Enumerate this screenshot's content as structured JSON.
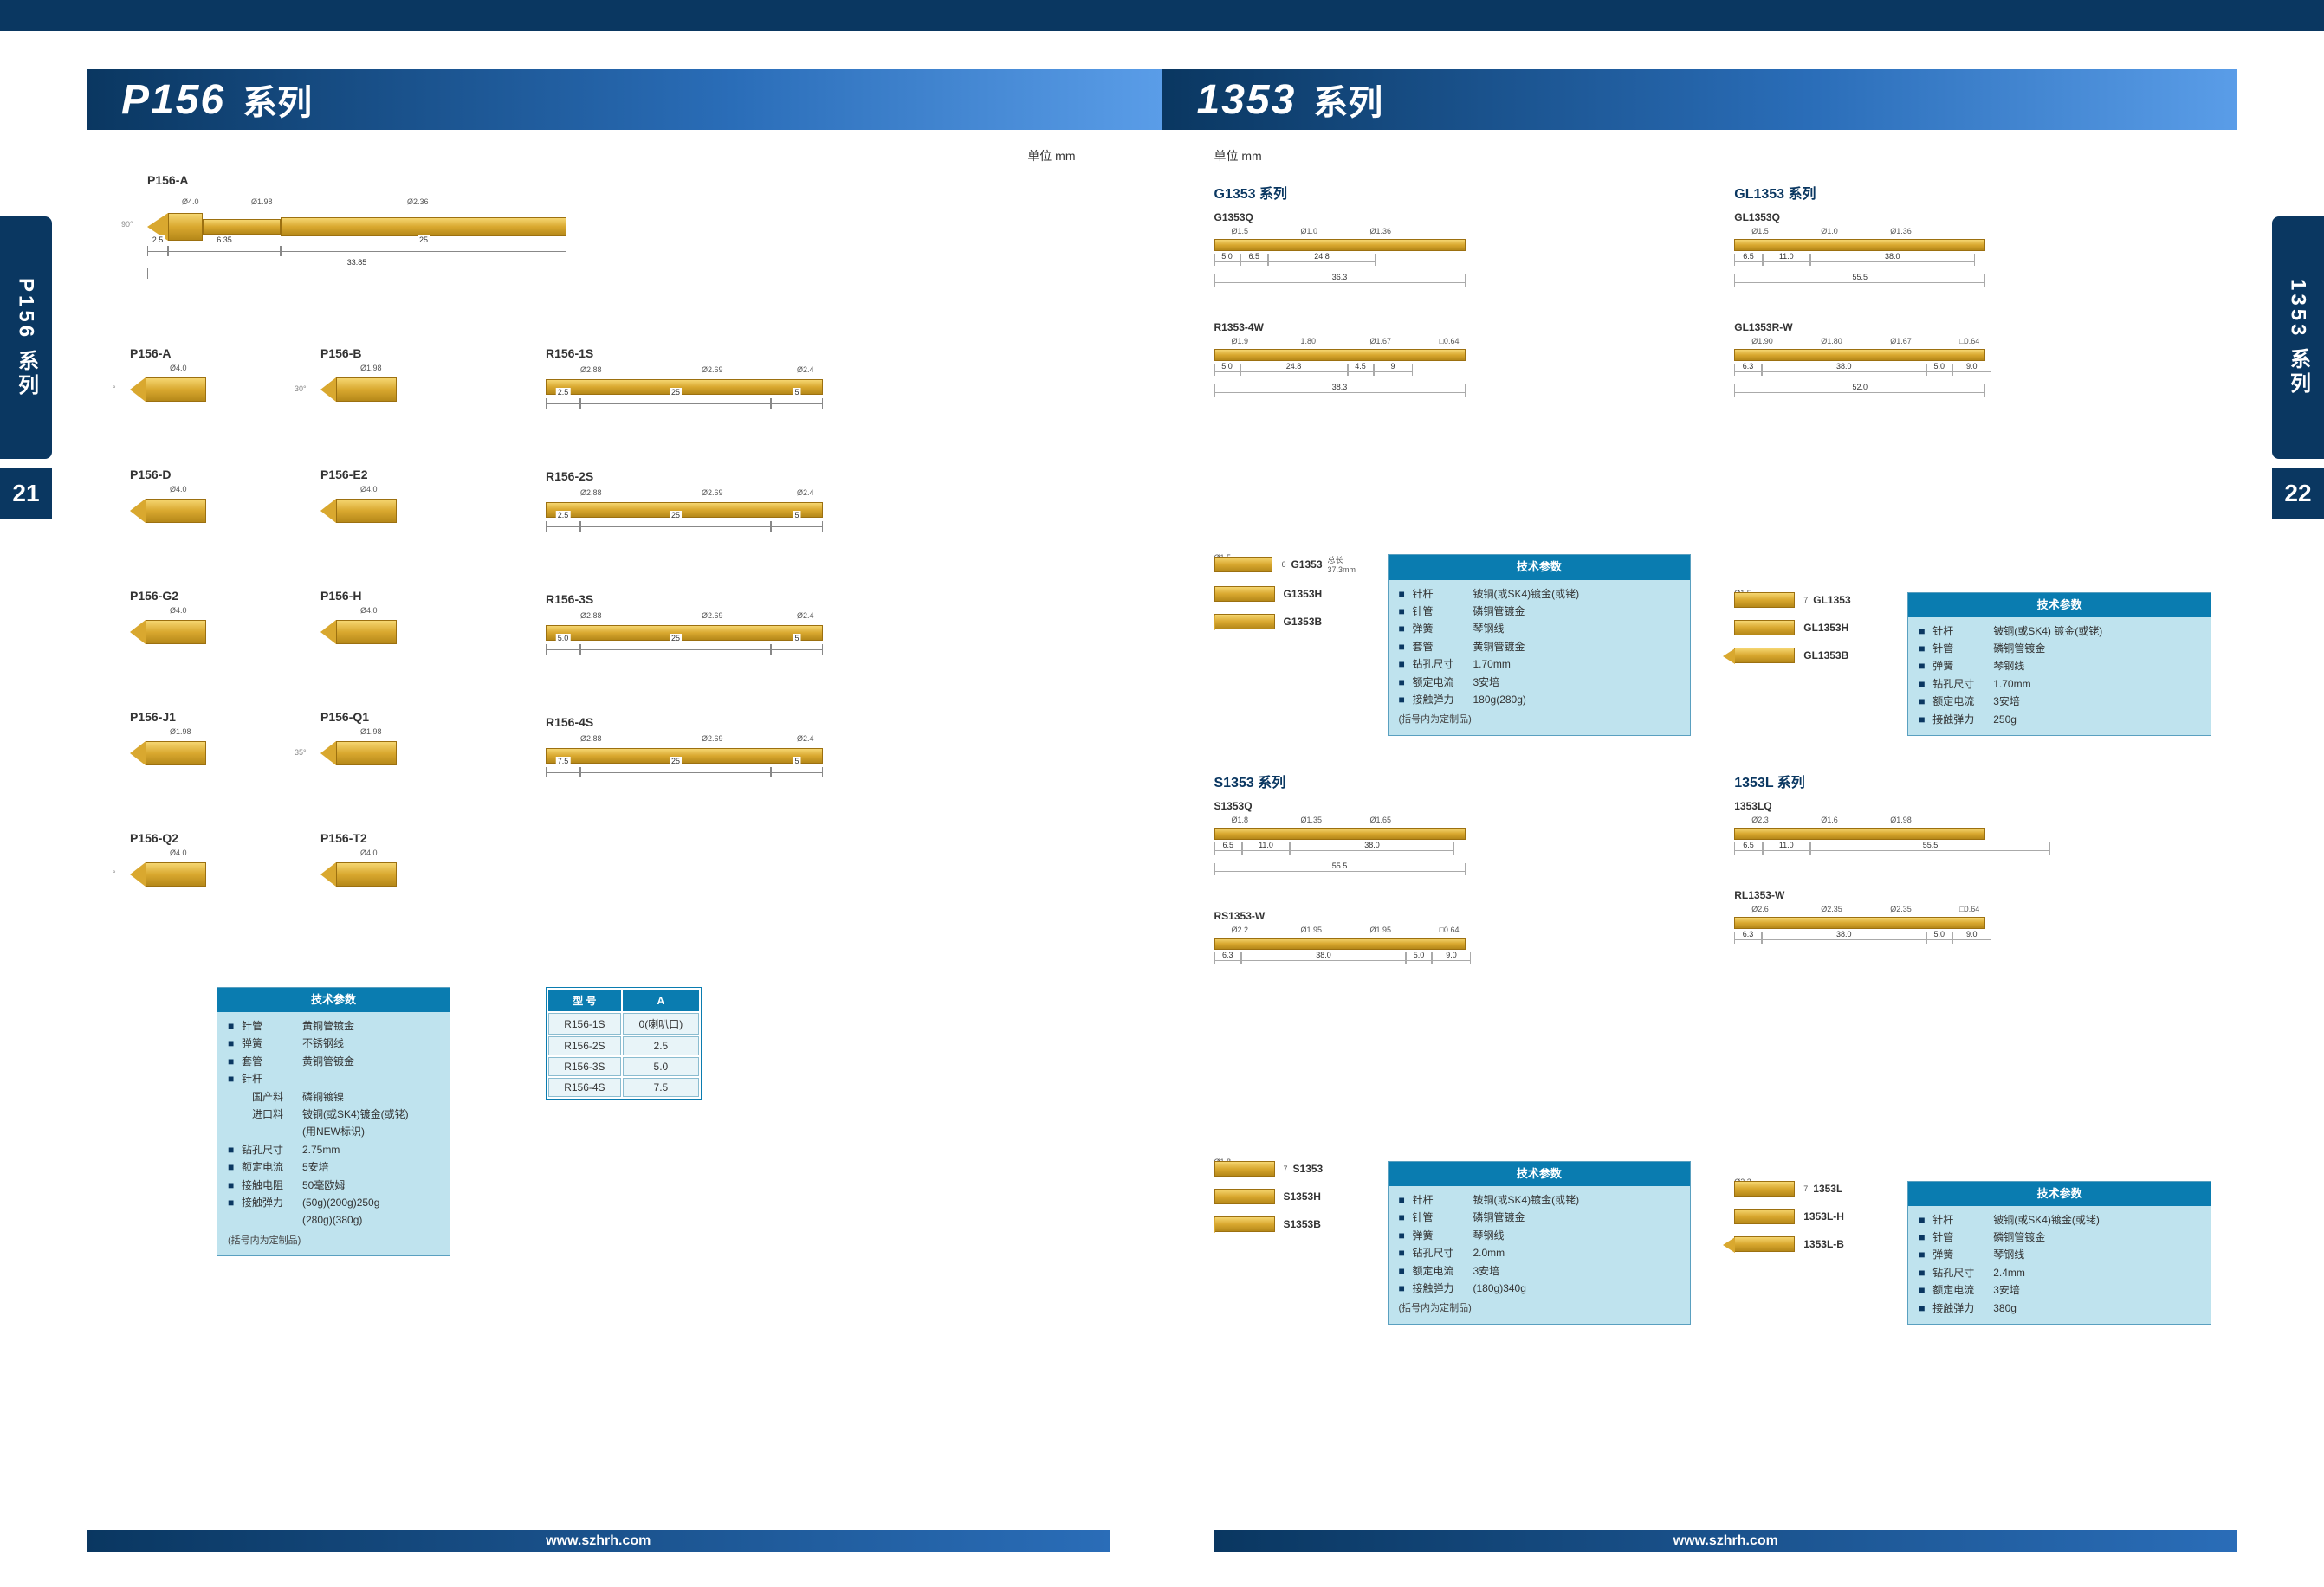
{
  "unit_label_left": "单位  mm",
  "unit_label_right": "单位  mm",
  "footer_url": "www.szhrh.com",
  "left": {
    "series_code": "P156",
    "series_suffix": "系列",
    "sidetab": "P156 系列",
    "pagenum": "21",
    "main_pin": {
      "name": "P156-A",
      "dia_top": [
        "Ø4.0",
        "Ø1.98",
        "Ø2.36"
      ],
      "angle": "90°",
      "segs_top": [
        "2.5",
        "6.35",
        "25"
      ],
      "total": "33.85"
    },
    "tips": [
      {
        "name": "P156-A",
        "dia": "Ø4.0",
        "angle": "90°"
      },
      {
        "name": "P156-B",
        "dia": "Ø1.98",
        "angle": "30°"
      },
      {
        "name": "P156-D",
        "dia": "Ø4.0"
      },
      {
        "name": "P156-E2",
        "dia": "Ø4.0"
      },
      {
        "name": "P156-G2",
        "dia": "Ø4.0"
      },
      {
        "name": "P156-H",
        "dia": "Ø4.0"
      },
      {
        "name": "P156-J1",
        "dia": "Ø1.98"
      },
      {
        "name": "P156-Q1",
        "dia": "Ø1.98",
        "angle": "35°"
      },
      {
        "name": "P156-Q2",
        "dia": "Ø4.0",
        "angle": "35°"
      },
      {
        "name": "P156-T2",
        "dia": "Ø4.0"
      }
    ],
    "rpins": [
      {
        "name": "R156-1S",
        "dias": [
          "Ø2.88",
          "Ø2.69",
          "Ø2.4"
        ],
        "segs": [
          "2.5",
          "25",
          "5"
        ]
      },
      {
        "name": "R156-2S",
        "dias": [
          "Ø2.88",
          "Ø2.69",
          "Ø2.4"
        ],
        "segs": [
          "2.5",
          "25",
          "5"
        ]
      },
      {
        "name": "R156-3S",
        "dias": [
          "Ø2.88",
          "Ø2.69",
          "Ø2.4"
        ],
        "segs": [
          "5.0",
          "25",
          "5"
        ]
      },
      {
        "name": "R156-4S",
        "dias": [
          "Ø2.88",
          "Ø2.69",
          "Ø2.4"
        ],
        "segs": [
          "7.5",
          "25",
          "5"
        ]
      }
    ],
    "spec": {
      "title": "技术参数",
      "rows": [
        {
          "k": "针管",
          "v": "黄铜管镀金"
        },
        {
          "k": "弹簧",
          "v": "不锈钢线"
        },
        {
          "k": "套管",
          "v": "黄铜管镀金"
        },
        {
          "k": "针杆",
          "v": ""
        },
        {
          "k": "国产料",
          "v": "磷铜镀镍",
          "indent": true
        },
        {
          "k": "进口料",
          "v": "铍铜(或SK4)镀金(或铑)",
          "indent": true
        },
        {
          "k": "",
          "v": "(用NEW标识)",
          "indent": true
        },
        {
          "k": "钻孔尺寸",
          "v": "2.75mm"
        },
        {
          "k": "额定电流",
          "v": "5安培"
        },
        {
          "k": "接触电阻",
          "v": "50毫欧姆"
        },
        {
          "k": "接触弹力",
          "v": "(50g)(200g)250g"
        },
        {
          "k": "",
          "v": "(280g)(380g)",
          "indent": true
        }
      ],
      "note": "(括号内为定制品)"
    },
    "mtable": {
      "headers": [
        "型 号",
        "A"
      ],
      "rows": [
        [
          "R156-1S",
          "0(喇叭口)"
        ],
        [
          "R156-2S",
          "2.5"
        ],
        [
          "R156-3S",
          "5.0"
        ],
        [
          "R156-4S",
          "7.5"
        ]
      ]
    }
  },
  "right": {
    "series_code": "1353",
    "series_suffix": "系列",
    "sidetab": "1353 系列",
    "pagenum": "22",
    "groups": [
      {
        "header": "G1353 系列",
        "probes": [
          {
            "name": "G1353Q",
            "dias": [
              "Ø1.5",
              "Ø1.0",
              "Ø1.36"
            ],
            "segs": [
              "5.0",
              "6.5",
              "24.8"
            ],
            "total": "36.3"
          },
          {
            "name": "R1353-4W",
            "dias": [
              "Ø1.9",
              "1.80",
              "Ø1.67",
              "□0.64"
            ],
            "segs": [
              "5.0",
              "24.8",
              "4.5",
              "9"
            ],
            "total": "38.3"
          }
        ],
        "tips": [
          {
            "name": "G1353",
            "dia": "Ø1.5",
            "seg": "6",
            "note": "总长37.3mm"
          },
          {
            "name": "G1353H"
          },
          {
            "name": "G1353B"
          }
        ],
        "spec": {
          "title": "技术参数",
          "rows": [
            {
              "k": "针杆",
              "v": "铍铜(或SK4)镀金(或铑)"
            },
            {
              "k": "针管",
              "v": "磷铜管镀金"
            },
            {
              "k": "弹簧",
              "v": "琴钢线"
            },
            {
              "k": "套管",
              "v": "黄铜管镀金"
            },
            {
              "k": "钻孔尺寸",
              "v": "1.70mm"
            },
            {
              "k": "额定电流",
              "v": "3安培"
            },
            {
              "k": "接触弹力",
              "v": "180g(280g)"
            }
          ],
          "note": "(括号内为定制品)"
        }
      },
      {
        "header": "GL1353 系列",
        "probes": [
          {
            "name": "GL1353Q",
            "dias": [
              "Ø1.5",
              "Ø1.0",
              "Ø1.36"
            ],
            "segs": [
              "6.5",
              "11.0",
              "38.0"
            ],
            "total": "55.5"
          },
          {
            "name": "GL1353R-W",
            "dias": [
              "Ø1.90",
              "Ø1.80",
              "Ø1.67",
              "□0.64"
            ],
            "segs": [
              "6.3",
              "38.0",
              "5.0",
              "9.0"
            ],
            "total": "52.0"
          }
        ],
        "tips": [
          {
            "name": "GL1353",
            "dia": "Ø1.5",
            "seg": "7"
          },
          {
            "name": "GL1353H"
          },
          {
            "name": "GL1353B"
          }
        ],
        "spec": {
          "title": "技术参数",
          "rows": [
            {
              "k": "针杆",
              "v": "铍铜(或SK4) 镀金(或铑)"
            },
            {
              "k": "针管",
              "v": "磷铜管镀金"
            },
            {
              "k": "弹簧",
              "v": "琴钢线"
            },
            {
              "k": "钻孔尺寸",
              "v": "1.70mm"
            },
            {
              "k": "额定电流",
              "v": "3安培"
            },
            {
              "k": "接触弹力",
              "v": "250g"
            }
          ]
        }
      },
      {
        "header": "S1353 系列",
        "probes": [
          {
            "name": "S1353Q",
            "dias": [
              "Ø1.8",
              "Ø1.35",
              "Ø1.65"
            ],
            "segs": [
              "6.5",
              "11.0",
              "38.0"
            ],
            "total": "55.5"
          },
          {
            "name": "RS1353-W",
            "dias": [
              "Ø2.2",
              "Ø1.95",
              "Ø1.95",
              "□0.64"
            ],
            "segs": [
              "6.3",
              "38.0",
              "5.0",
              "9.0"
            ]
          }
        ],
        "tips": [
          {
            "name": "S1353",
            "dia": "Ø1.8",
            "seg": "7"
          },
          {
            "name": "S1353H"
          },
          {
            "name": "S1353B"
          }
        ],
        "spec": {
          "title": "技术参数",
          "rows": [
            {
              "k": "针杆",
              "v": "铍铜(或SK4)镀金(或铑)"
            },
            {
              "k": "针管",
              "v": "磷铜管镀金"
            },
            {
              "k": "弹簧",
              "v": "琴钢线"
            },
            {
              "k": "钻孔尺寸",
              "v": "2.0mm"
            },
            {
              "k": "额定电流",
              "v": "3安培"
            },
            {
              "k": "接触弹力",
              "v": "(180g)340g"
            }
          ],
          "note": "(括号内为定制品)"
        }
      },
      {
        "header": "1353L 系列",
        "probes": [
          {
            "name": "1353LQ",
            "dias": [
              "Ø2.3",
              "Ø1.6",
              "Ø1.98"
            ],
            "segs": [
              "6.5",
              "11.0",
              "55.5"
            ],
            "total": ""
          },
          {
            "name": "RL1353-W",
            "dias": [
              "Ø2.6",
              "Ø2.35",
              "Ø2.35",
              "□0.64"
            ],
            "segs": [
              "6.3",
              "38.0",
              "5.0",
              "9.0"
            ]
          }
        ],
        "tips": [
          {
            "name": "1353L",
            "dia": "Ø2.3",
            "seg": "7"
          },
          {
            "name": "1353L-H"
          },
          {
            "name": "1353L-B"
          }
        ],
        "spec": {
          "title": "技术参数",
          "rows": [
            {
              "k": "针杆",
              "v": "铍铜(或SK4)镀金(或铑)"
            },
            {
              "k": "针管",
              "v": "磷铜管镀金"
            },
            {
              "k": "弹簧",
              "v": "琴钢线"
            },
            {
              "k": "钻孔尺寸",
              "v": "2.4mm"
            },
            {
              "k": "额定电流",
              "v": "3安培"
            },
            {
              "k": "接触弹力",
              "v": "380g"
            }
          ]
        }
      }
    ]
  },
  "colors": {
    "dark_blue": "#0a3761",
    "mid_blue": "#2a6db8",
    "light_blue": "#bfe3ee",
    "gold_top": "#f5d671",
    "gold_mid": "#d9a82f",
    "gold_bot": "#b58819"
  }
}
